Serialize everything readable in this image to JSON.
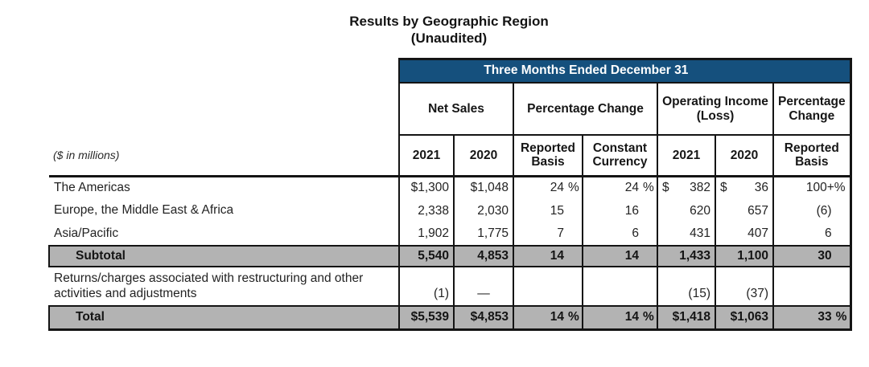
{
  "colors": {
    "header_blue": "#15507d",
    "row_gray": "#b3b3b3",
    "border": "#141414"
  },
  "title": {
    "line1": "Results by Geographic Region",
    "line2": "(Unaudited)"
  },
  "table": {
    "span_header": "Three Months Ended December 31",
    "unit_note": "($ in millions)",
    "groups": [
      {
        "label": "Net Sales",
        "cols": 2
      },
      {
        "label": "Percentage Change",
        "cols": 2
      },
      {
        "label": "Operating Income (Loss)",
        "cols": 2
      },
      {
        "label": "Percentage Change",
        "cols": 1
      }
    ],
    "subheaders": [
      "2021",
      "2020",
      "Reported Basis",
      "Constant Currency",
      "2021",
      "2020",
      "Reported Basis"
    ],
    "columns": {
      "keys": [
        "net_sales_2021",
        "net_sales_2020",
        "pct_reported_basis",
        "pct_constant_currency",
        "op_income_2021",
        "op_income_2020",
        "pct_reported_basis_2"
      ],
      "pct_slot": [
        false,
        false,
        true,
        true,
        false,
        false,
        true
      ]
    },
    "rows": [
      {
        "label": "The Americas",
        "type": "normal",
        "cells": [
          {
            "pre": "$",
            "val": "1,300"
          },
          {
            "pre": "$",
            "val": "1,048"
          },
          {
            "val": "24",
            "suf": "%"
          },
          {
            "val": "24",
            "suf": "%"
          },
          {
            "pre": "$",
            "loose": true,
            "val": "382"
          },
          {
            "pre": "$",
            "loose": true,
            "val": "36"
          },
          {
            "val": "100+%",
            "slot": false
          }
        ]
      },
      {
        "label": "Europe, the Middle East & Africa",
        "type": "normal",
        "cells": [
          {
            "val": "2,338"
          },
          {
            "val": "2,030"
          },
          {
            "val": "15"
          },
          {
            "val": "16"
          },
          {
            "val": "620"
          },
          {
            "val": "657"
          },
          {
            "val": "(6)"
          }
        ]
      },
      {
        "label": "Asia/Pacific",
        "type": "normal",
        "cells": [
          {
            "val": "1,902"
          },
          {
            "val": "1,775"
          },
          {
            "val": "7"
          },
          {
            "val": "6"
          },
          {
            "val": "431"
          },
          {
            "val": "407"
          },
          {
            "val": "6"
          }
        ]
      },
      {
        "label": "Subtotal",
        "type": "subtotal",
        "cells": [
          {
            "val": "5,540"
          },
          {
            "val": "4,853"
          },
          {
            "val": "14"
          },
          {
            "val": "14"
          },
          {
            "val": "1,433"
          },
          {
            "val": "1,100"
          },
          {
            "val": "30"
          }
        ]
      },
      {
        "label": "Returns/charges associated with restructuring and other activities and adjustments",
        "type": "returns",
        "cells": [
          {
            "val": "(1)"
          },
          {
            "val": "—",
            "center": true
          },
          {
            "val": ""
          },
          {
            "val": ""
          },
          {
            "val": "(15)"
          },
          {
            "val": "(37)"
          },
          {
            "val": ""
          }
        ]
      },
      {
        "label": "Total",
        "type": "total",
        "cells": [
          {
            "pre": "$",
            "val": "5,539"
          },
          {
            "pre": "$",
            "val": "4,853"
          },
          {
            "val": "14",
            "suf": "%"
          },
          {
            "val": "14",
            "suf": "%"
          },
          {
            "pre": "$",
            "val": "1,418"
          },
          {
            "pre": "$",
            "val": "1,063"
          },
          {
            "val": "33",
            "suf": "%"
          }
        ]
      }
    ]
  }
}
